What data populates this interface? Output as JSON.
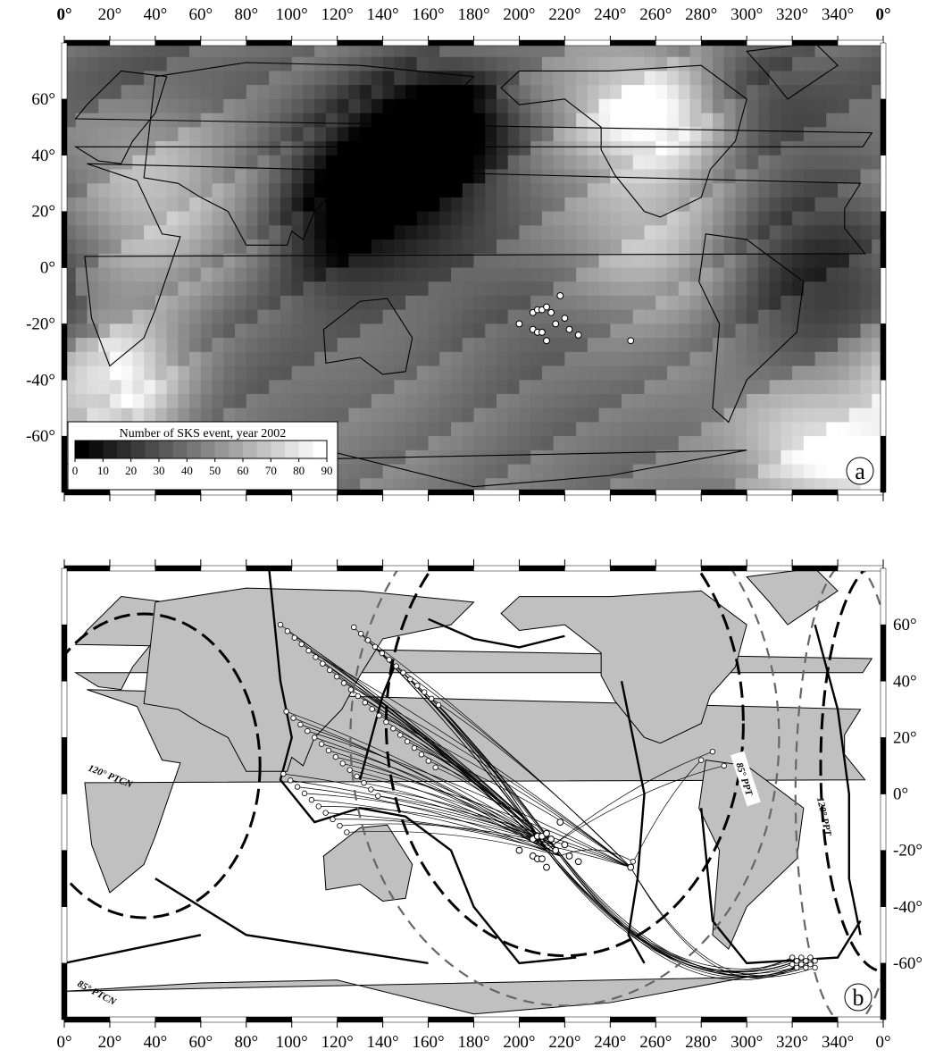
{
  "top_axis": {
    "lon_labels": [
      "0°",
      "20°",
      "40°",
      "60°",
      "80°",
      "100°",
      "120°",
      "140°",
      "160°",
      "180°",
      "200°",
      "220°",
      "240°",
      "260°",
      "280°",
      "300°",
      "320°",
      "340°",
      "0°"
    ],
    "bold_first_last": true
  },
  "bottom_axis": {
    "lon_labels": [
      "0°",
      "20°",
      "40°",
      "60°",
      "80°",
      "100°",
      "120°",
      "140°",
      "160°",
      "180°",
      "200°",
      "220°",
      "240°",
      "260°",
      "280°",
      "300°",
      "320°",
      "340°",
      "0°"
    ]
  },
  "panel_a": {
    "letter": "a",
    "lat_labels": [
      "60°",
      "40°",
      "20°",
      "0°",
      "-20°",
      "-40°",
      "-60°"
    ],
    "legend": {
      "title": "Number of SKS event, year 2002",
      "ticks": [
        "0",
        "10",
        "20",
        "30",
        "40",
        "50",
        "60",
        "70",
        "80",
        "90"
      ],
      "low_color": "#000000",
      "high_color": "#ffffff"
    },
    "stations_note": "white circles in the SW Pacific",
    "stations": [
      {
        "lon": 200,
        "lat": -20
      },
      {
        "lon": 206,
        "lat": -16
      },
      {
        "lon": 208,
        "lat": -15
      },
      {
        "lon": 210,
        "lat": -15
      },
      {
        "lon": 212,
        "lat": -14
      },
      {
        "lon": 214,
        "lat": -16
      },
      {
        "lon": 218,
        "lat": -10
      },
      {
        "lon": 206,
        "lat": -22
      },
      {
        "lon": 208,
        "lat": -23
      },
      {
        "lon": 210,
        "lat": -23
      },
      {
        "lon": 212,
        "lat": -26
      },
      {
        "lon": 216,
        "lat": -20
      },
      {
        "lon": 220,
        "lat": -18
      },
      {
        "lon": 222,
        "lat": -22
      },
      {
        "lon": 226,
        "lat": -24
      },
      {
        "lon": 249,
        "lat": -26
      }
    ]
  },
  "panel_b": {
    "letter": "b",
    "lat_labels": [
      "60°",
      "40°",
      "20°",
      "0°",
      "-20°",
      "-40°",
      "-60°"
    ],
    "band_labels": {
      "ptcn_120": "120° PTCN",
      "ptcn_85": "85° PTCN",
      "ppt_85": "85° PPT",
      "ppt_120": "120° PPT"
    },
    "land_color": "#c0c0c0",
    "ocean_color": "#ffffff"
  }
}
